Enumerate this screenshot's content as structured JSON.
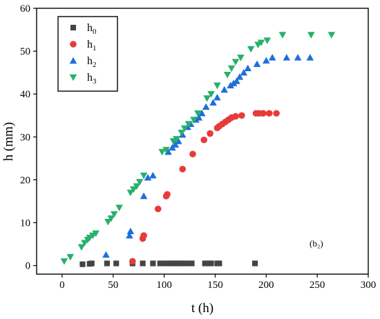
{
  "chart_data": {
    "type": "scatter",
    "xlabel": "t (h)",
    "ylabel": "h (mm)",
    "xlim": [
      -25,
      300
    ],
    "ylim": [
      -2,
      60
    ],
    "xticks": [
      0,
      50,
      100,
      150,
      200,
      250,
      300
    ],
    "yticks": [
      0,
      10,
      20,
      30,
      40,
      50,
      60
    ],
    "annotation": "(b₂)",
    "legend": {
      "position": "top-left"
    },
    "series": [
      {
        "name": "h0",
        "label_main": "h",
        "label_sub": "0",
        "marker": "square",
        "color": "#444444",
        "points": [
          [
            20,
            0.3
          ],
          [
            27,
            0.4
          ],
          [
            29,
            0.5
          ],
          [
            44,
            0.5
          ],
          [
            53,
            0.5
          ],
          [
            69,
            0.5
          ],
          [
            79,
            0.5
          ],
          [
            89,
            0.5
          ],
          [
            96,
            0.5
          ],
          [
            101,
            0.5
          ],
          [
            104,
            0.5
          ],
          [
            107,
            0.5
          ],
          [
            110,
            0.5
          ],
          [
            113,
            0.5
          ],
          [
            116,
            0.5
          ],
          [
            119,
            0.5
          ],
          [
            122,
            0.5
          ],
          [
            127,
            0.5
          ],
          [
            140,
            0.5
          ],
          [
            143,
            0.5
          ],
          [
            146,
            0.5
          ],
          [
            152,
            0.5
          ],
          [
            154,
            0.5
          ],
          [
            189,
            0.5
          ]
        ]
      },
      {
        "name": "h1",
        "label_main": "h",
        "label_sub": "1",
        "marker": "circle",
        "color": "#e83a3a",
        "points": [
          [
            69,
            1
          ],
          [
            79,
            6.3
          ],
          [
            80,
            7
          ],
          [
            94,
            13.2
          ],
          [
            102,
            16.2
          ],
          [
            103,
            16.6
          ],
          [
            118,
            22.5
          ],
          [
            128,
            26
          ],
          [
            139,
            29.3
          ],
          [
            145,
            30.8
          ],
          [
            152,
            32.1
          ],
          [
            154,
            32.5
          ],
          [
            157,
            33
          ],
          [
            160,
            33.5
          ],
          [
            163,
            34
          ],
          [
            166,
            34.5
          ],
          [
            170,
            34.8
          ],
          [
            176,
            35
          ],
          [
            190,
            35.5
          ],
          [
            193,
            35.5
          ],
          [
            197,
            35.5
          ],
          [
            203,
            35.5
          ],
          [
            210,
            35.5
          ]
        ]
      },
      {
        "name": "h2",
        "label_main": "h",
        "label_sub": "2",
        "marker": "triangle-up",
        "color": "#1e6fd9",
        "points": [
          [
            43,
            2.5
          ],
          [
            66,
            7
          ],
          [
            67,
            8
          ],
          [
            80,
            16.2
          ],
          [
            84,
            20.5
          ],
          [
            89,
            21
          ],
          [
            104,
            26.5
          ],
          [
            108,
            27.5
          ],
          [
            111,
            28.2
          ],
          [
            114,
            29
          ],
          [
            118,
            30.5
          ],
          [
            123,
            32.3
          ],
          [
            126,
            33
          ],
          [
            131,
            34
          ],
          [
            134,
            34.5
          ],
          [
            137,
            35.5
          ],
          [
            141,
            37
          ],
          [
            148,
            38
          ],
          [
            152,
            39.2
          ],
          [
            159,
            41
          ],
          [
            165,
            42
          ],
          [
            168,
            42.5
          ],
          [
            171,
            43
          ],
          [
            174,
            44
          ],
          [
            178,
            45
          ],
          [
            182,
            46
          ],
          [
            191,
            47
          ],
          [
            200,
            47.8
          ],
          [
            206,
            48.5
          ],
          [
            220,
            48.5
          ],
          [
            231,
            48.5
          ],
          [
            243,
            48.5
          ]
        ]
      },
      {
        "name": "h3",
        "label_main": "h",
        "label_sub": "3",
        "marker": "triangle-down",
        "color": "#27b06b",
        "points": [
          [
            2,
            1
          ],
          [
            8,
            2
          ],
          [
            19,
            4.3
          ],
          [
            22,
            5.3
          ],
          [
            25,
            6
          ],
          [
            27,
            6.5
          ],
          [
            30,
            7
          ],
          [
            33,
            7.5
          ],
          [
            45,
            10.2
          ],
          [
            48,
            11
          ],
          [
            51,
            12
          ],
          [
            56,
            13.5
          ],
          [
            67,
            17
          ],
          [
            70,
            17.8
          ],
          [
            73,
            18.5
          ],
          [
            76,
            19.5
          ],
          [
            80,
            21
          ],
          [
            98,
            26.5
          ],
          [
            102,
            27
          ],
          [
            109,
            29
          ],
          [
            112,
            29.5
          ],
          [
            117,
            31
          ],
          [
            120,
            32
          ],
          [
            124,
            33
          ],
          [
            129,
            34
          ],
          [
            133,
            35.5
          ],
          [
            142,
            39
          ],
          [
            146,
            40
          ],
          [
            152,
            42
          ],
          [
            162,
            44.5
          ],
          [
            166,
            46
          ],
          [
            170,
            47.5
          ],
          [
            175,
            48.5
          ],
          [
            185,
            50.5
          ],
          [
            192,
            51.5
          ],
          [
            195,
            52
          ],
          [
            201,
            52.5
          ],
          [
            216,
            53.8
          ],
          [
            244,
            53.8
          ],
          [
            264,
            53.8
          ]
        ]
      }
    ]
  }
}
